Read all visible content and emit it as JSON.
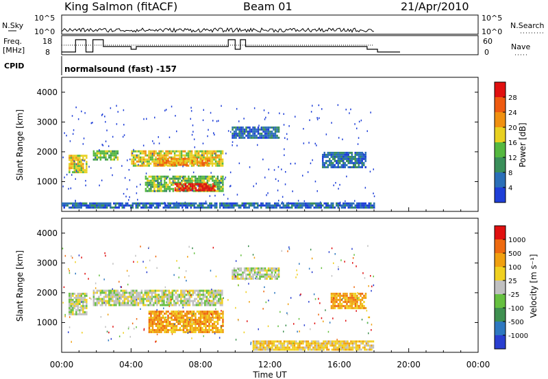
{
  "header": {
    "station": "King Salmon (fitACF)",
    "beam": "Beam 01",
    "date": "21/Apr/2010"
  },
  "top_panels": {
    "nsky_label": "N.Sky",
    "nsky_ticks": [
      "10^5",
      "10^0"
    ],
    "nsearch_label": "N.Search",
    "nsearch_ticks": [
      "10^5",
      "10^0"
    ],
    "freq_label": "Freq.",
    "freq_unit": "[MHz]",
    "freq_ticks": [
      "18",
      "8"
    ],
    "nave_label": "Nave",
    "nave_ticks": [
      "60",
      "0"
    ],
    "cpid_label": "CPID",
    "cpid_text": "normalsound (fast) -157"
  },
  "colors": {
    "power": [
      "#1f3fd8",
      "#2b6fb8",
      "#3a8f5a",
      "#55b840",
      "#e8d020",
      "#f09010",
      "#ee5a10",
      "#e01010"
    ],
    "velocity": [
      "#2a3fd0",
      "#2e78c0",
      "#3f9050",
      "#66c040",
      "#c0c0c0",
      "#f0d020",
      "#f0a010",
      "#ee6a10",
      "#e01010"
    ]
  },
  "chart_data": [
    {
      "type": "heatmap",
      "name": "power",
      "ylabel": "Slant Range [km]",
      "xlabel": "Time UT",
      "xlim": [
        0,
        24
      ],
      "ylim": [
        0,
        4500
      ],
      "x_ticks": [
        "00:00",
        "04:00",
        "08:00",
        "12:00",
        "16:00",
        "20:00",
        "00:00"
      ],
      "y_ticks": [
        1000,
        2000,
        3000,
        4000
      ],
      "colorbar_label": "Power [dB]",
      "colorbar_ticks": [
        "4",
        "8",
        "12",
        "16",
        "20",
        "24",
        "28"
      ],
      "bands": [
        {
          "x": [
            0.4,
            1.4
          ],
          "y": [
            1300,
            1900
          ],
          "level": 4
        },
        {
          "x": [
            1.8,
            3.2
          ],
          "y": [
            1750,
            2050
          ],
          "level": 3
        },
        {
          "x": [
            4.0,
            9.3
          ],
          "y": [
            1500,
            2050
          ],
          "level": 4
        },
        {
          "x": [
            5.5,
            8.5
          ],
          "y": [
            1550,
            1800
          ],
          "level": 5
        },
        {
          "x": [
            4.8,
            9.3
          ],
          "y": [
            650,
            1200
          ],
          "level": 3
        },
        {
          "x": [
            6.5,
            8.8
          ],
          "y": [
            700,
            950
          ],
          "level": 7
        },
        {
          "x": [
            9.8,
            12.5
          ],
          "y": [
            2450,
            2850
          ],
          "level": 1
        },
        {
          "x": [
            15.0,
            17.5
          ],
          "y": [
            1500,
            2000
          ],
          "level": 1
        },
        {
          "x": [
            0.0,
            18.0
          ],
          "y": [
            100,
            300
          ],
          "level": 1
        }
      ]
    },
    {
      "type": "heatmap",
      "name": "velocity",
      "ylabel": "Slant Range [km]",
      "xlabel": "Time UT",
      "xlim": [
        0,
        24
      ],
      "ylim": [
        0,
        4500
      ],
      "x_ticks": [
        "00:00",
        "04:00",
        "08:00",
        "12:00",
        "16:00",
        "20:00",
        "00:00"
      ],
      "y_ticks": [
        1000,
        2000,
        3000,
        4000
      ],
      "colorbar_label": "Velocity [m s⁻¹]",
      "colorbar_ticks": [
        "1000",
        "500",
        "100",
        "25",
        "-25",
        "-100",
        "-500",
        "-1000"
      ],
      "bands": [
        {
          "x": [
            0.4,
            1.4
          ],
          "y": [
            1300,
            2000
          ],
          "level": 4
        },
        {
          "x": [
            1.8,
            9.3
          ],
          "y": [
            1600,
            2100
          ],
          "level": 4
        },
        {
          "x": [
            5.0,
            9.3
          ],
          "y": [
            650,
            1400
          ],
          "level": 6
        },
        {
          "x": [
            9.8,
            12.5
          ],
          "y": [
            2450,
            2850
          ],
          "level": 4
        },
        {
          "x": [
            15.5,
            17.5
          ],
          "y": [
            1500,
            2000
          ],
          "level": 6
        },
        {
          "x": [
            11.0,
            18.0
          ],
          "y": [
            100,
            400
          ],
          "level": 5
        }
      ]
    }
  ],
  "footer": {
    "x_ticks": [
      "00:00",
      "04:00",
      "08:00",
      "12:00",
      "16:00",
      "20:00",
      "00:00"
    ],
    "xlabel": "Time UT"
  }
}
